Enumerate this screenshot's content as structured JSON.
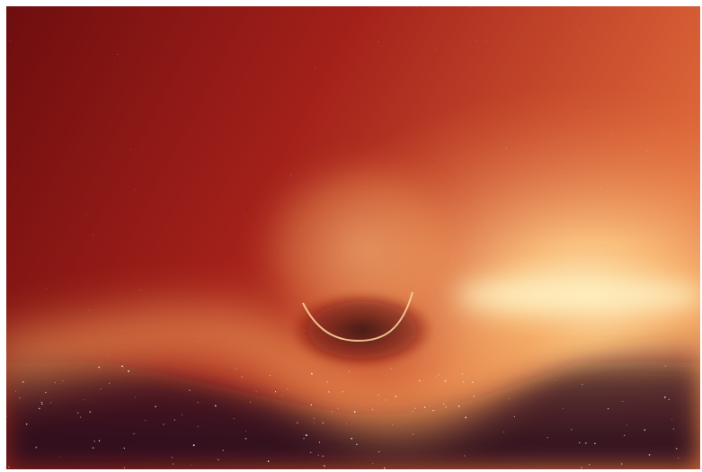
{
  "scene": {
    "subject": "black-hole-render",
    "colors": {
      "frame_border": "#ffffff",
      "sky_dark_left": "#6e0e0f",
      "sky_mid": "#a3201a",
      "sky_bright_right": "#e06a3a",
      "hot_core": "#fff6c8",
      "glow_warm": "#ffd08a",
      "disk_band": "#f2a15a",
      "shadow": "#2a0d12",
      "space_bottom": "#2a0f1f",
      "photon_ring": "#f6d19a",
      "star": "#ffffff"
    }
  }
}
